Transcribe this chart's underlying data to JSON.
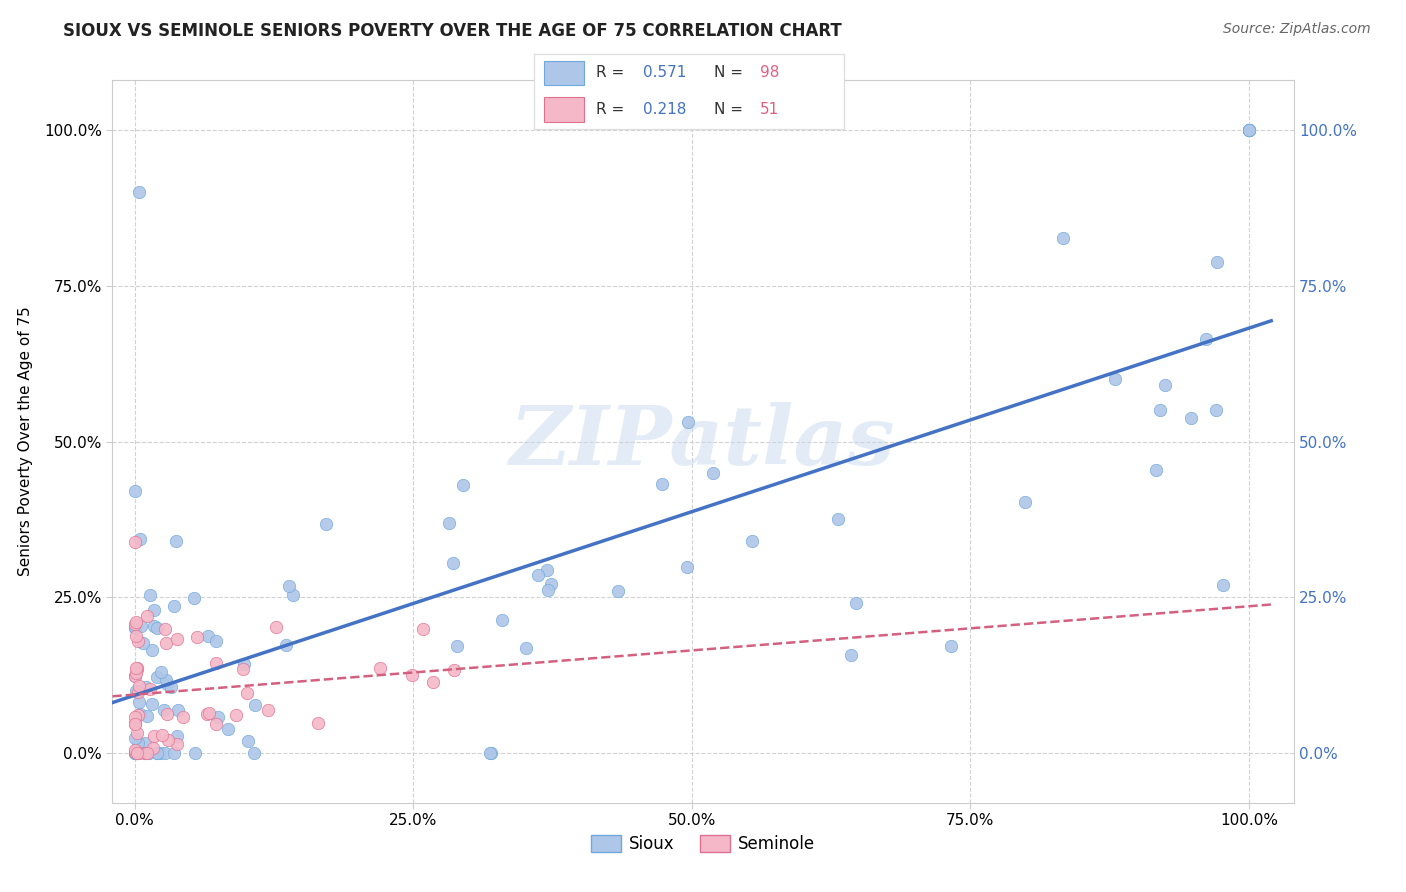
{
  "title": "SIOUX VS SEMINOLE SENIORS POVERTY OVER THE AGE OF 75 CORRELATION CHART",
  "source": "Source: ZipAtlas.com",
  "ylabel": "Seniors Poverty Over the Age of 75",
  "xlabel": "",
  "sioux_R": 0.571,
  "sioux_N": 98,
  "seminole_R": 0.218,
  "seminole_N": 51,
  "sioux_color": "#aec6e8",
  "sioux_edge_color": "#6fa8dc",
  "sioux_line_color": "#4472c4",
  "seminole_color": "#f4b8c8",
  "seminole_edge_color": "#e07090",
  "seminole_line_color": "#d46080",
  "watermark": "ZIPatlas",
  "background_color": "#ffffff",
  "grid_color": "#cccccc",
  "xlim": [
    -0.02,
    1.04
  ],
  "ylim": [
    -0.08,
    1.08
  ],
  "xticks": [
    0.0,
    0.25,
    0.5,
    0.75,
    1.0
  ],
  "yticks": [
    0.0,
    0.25,
    0.5,
    0.75,
    1.0
  ],
  "xticklabels": [
    "0.0%",
    "25.0%",
    "50.0%",
    "75.0%",
    "100.0%"
  ],
  "yticklabels": [
    "0.0%",
    "25.0%",
    "50.0%",
    "75.0%",
    "100.0%"
  ],
  "right_tick_color": "#4472c4",
  "title_color": "#222222",
  "source_color": "#666666",
  "legend_R_label_color": "#333333",
  "legend_R_value_color": "#4472c4",
  "legend_N_value_color": "#e06080"
}
